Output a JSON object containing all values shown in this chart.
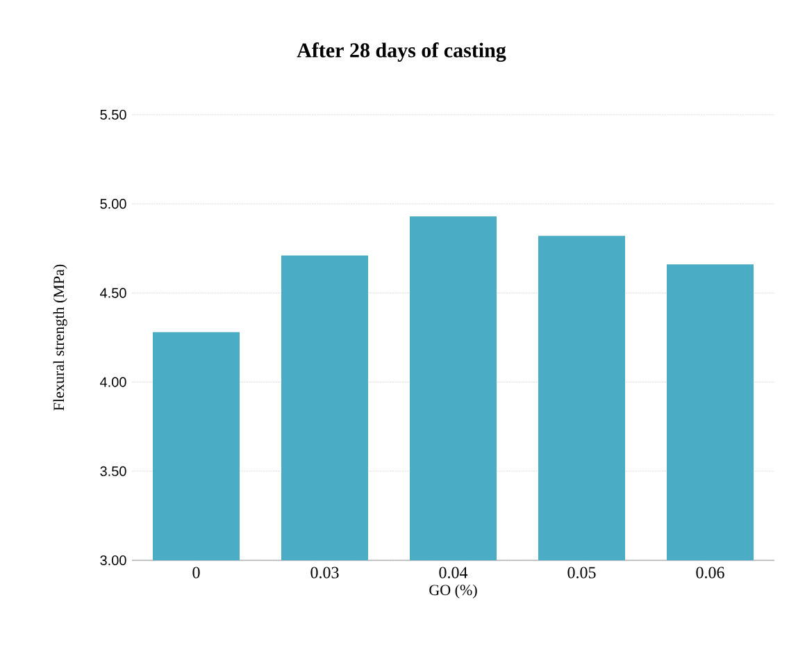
{
  "chart_data": {
    "type": "bar",
    "title": "After 28 days of casting",
    "xlabel": "GO (%)",
    "ylabel": "Flexural strength (MPa)",
    "categories": [
      "0",
      "0.03",
      "0.04",
      "0.05",
      "0.06"
    ],
    "values": [
      4.28,
      4.71,
      4.93,
      4.82,
      4.66
    ],
    "color": "#4bacc6",
    "ylim": [
      3.0,
      5.5
    ],
    "yticks": [
      {
        "value": 3.0,
        "label": "3.00"
      },
      {
        "value": 3.5,
        "label": "3.50"
      },
      {
        "value": 4.0,
        "label": "4.00"
      },
      {
        "value": 4.5,
        "label": "4.50"
      },
      {
        "value": 5.0,
        "label": "5.00"
      },
      {
        "value": 5.5,
        "label": "5.50"
      }
    ],
    "grid": "y"
  }
}
